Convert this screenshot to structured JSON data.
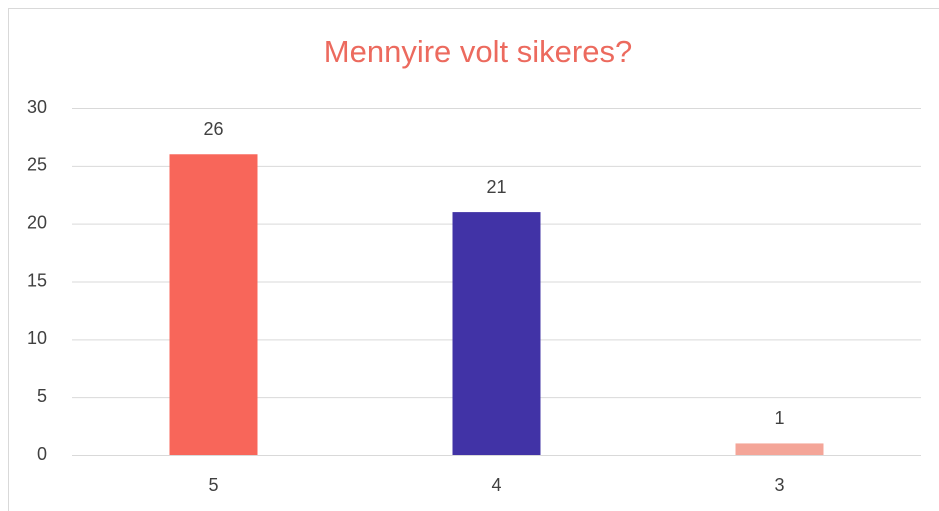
{
  "chart_data": {
    "type": "bar",
    "title": "Mennyire volt sikeres?",
    "categories": [
      "5",
      "4",
      "3"
    ],
    "values": [
      26,
      21,
      1
    ],
    "colors": [
      "#f8665a",
      "#4133a6",
      "#f4a598"
    ],
    "ylim": [
      0,
      30
    ],
    "yticks": [
      0,
      5,
      10,
      15,
      20,
      25,
      30
    ],
    "grid": true
  }
}
